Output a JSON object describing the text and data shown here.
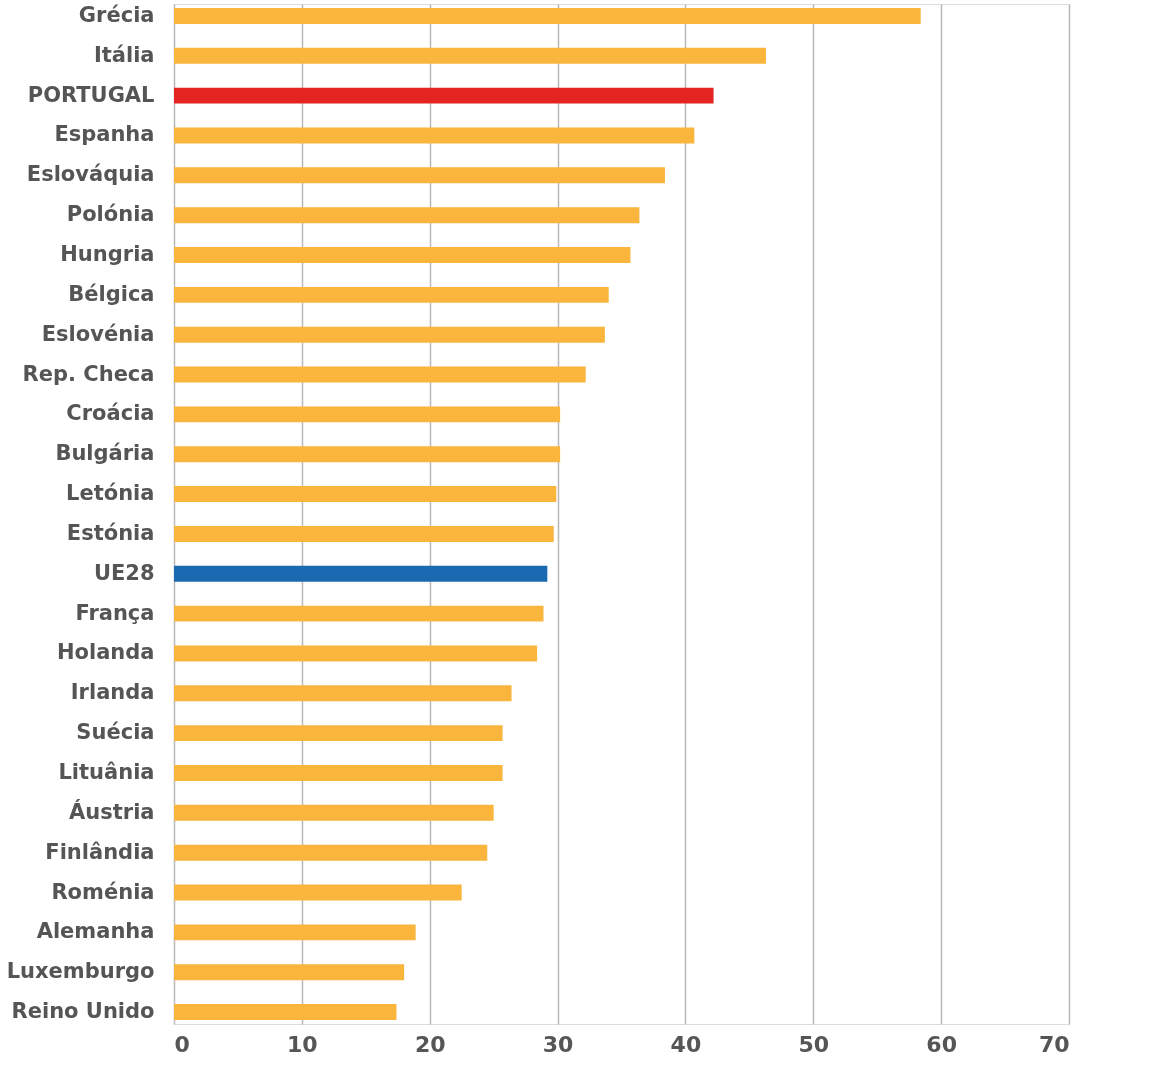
{
  "chart_data": {
    "type": "bar",
    "orientation": "horizontal",
    "categories": [
      "Grécia",
      "Itália",
      "PORTUGAL",
      "Espanha",
      "Eslováquia",
      "Polónia",
      "Hungria",
      "Bélgica",
      "Eslovénia",
      "Rep. Checa",
      "Croácia",
      "Bulgária",
      "Letónia",
      "Estónia",
      "UE28",
      "França",
      "Holanda",
      "Irlanda",
      "Suécia",
      "Lituânia",
      "Áustria",
      "Finlândia",
      "Roménia",
      "Alemanha",
      "Luxemburgo",
      "Reino Unido"
    ],
    "values": [
      58.4,
      46.3,
      42.2,
      40.7,
      38.4,
      36.4,
      35.7,
      34.0,
      33.7,
      32.2,
      30.2,
      30.2,
      29.9,
      29.7,
      29.2,
      28.9,
      28.4,
      26.4,
      25.7,
      25.7,
      25.0,
      24.5,
      22.5,
      18.9,
      18.0,
      17.4
    ],
    "colors": [
      "#f9b53c",
      "#f9b53c",
      "#e32421",
      "#f9b53c",
      "#f9b53c",
      "#f9b53c",
      "#f9b53c",
      "#f9b53c",
      "#f9b53c",
      "#f9b53c",
      "#f9b53c",
      "#f9b53c",
      "#f9b53c",
      "#f9b53c",
      "#1b69b1",
      "#f9b53c",
      "#f9b53c",
      "#f9b53c",
      "#f9b53c",
      "#f9b53c",
      "#f9b53c",
      "#f9b53c",
      "#f9b53c",
      "#f9b53c",
      "#f9b53c",
      "#f9b53c"
    ],
    "xlim": [
      0,
      70
    ],
    "xticks": [
      0,
      10,
      20,
      30,
      40,
      50,
      60,
      70
    ],
    "grid": "x"
  }
}
